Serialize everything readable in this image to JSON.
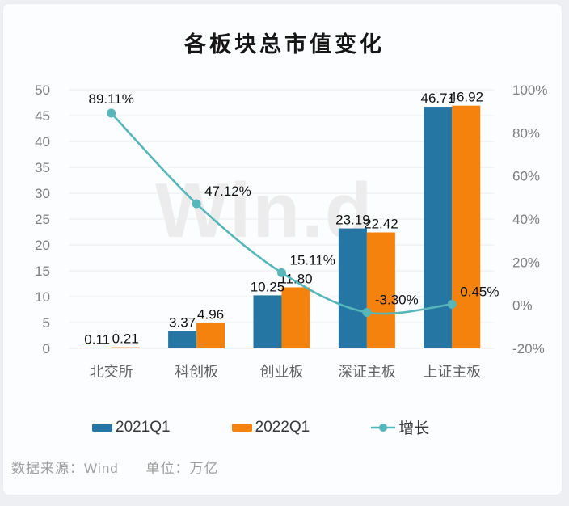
{
  "title": "各板块总市值变化",
  "watermark": "Win.d",
  "footer": {
    "source_label": "数据来源：Wind",
    "unit_label": "单位：万亿"
  },
  "colors": {
    "bar_2021": "#2576a3",
    "bar_2022": "#f5820c",
    "growth_line": "#57b6b9",
    "gridline": "#ececec",
    "axis_text": "#7e7e7e",
    "category_text": "#616161",
    "data_label": "#111111"
  },
  "chart_data": {
    "type": "bar",
    "combo": "bar+line",
    "title": "各板块总市值变化",
    "categories": [
      "北交所",
      "科创板",
      "创业板",
      "深证主板",
      "上证主板"
    ],
    "series": [
      {
        "name": "2021Q1",
        "type": "bar",
        "axis": "left",
        "color": "#2576a3",
        "values": [
          0.11,
          3.37,
          10.25,
          23.19,
          46.71
        ]
      },
      {
        "name": "2022Q1",
        "type": "bar",
        "axis": "left",
        "color": "#f5820c",
        "values": [
          0.21,
          4.96,
          11.8,
          22.42,
          46.92
        ]
      },
      {
        "name": "增长",
        "type": "line",
        "axis": "right",
        "color": "#57b6b9",
        "unit": "%",
        "values": [
          89.11,
          47.12,
          15.11,
          -3.3,
          0.45
        ]
      }
    ],
    "left_axis": {
      "min": 0,
      "max": 50,
      "step": 5
    },
    "right_axis": {
      "min": -20,
      "max": 100,
      "step": 20,
      "suffix": "%"
    },
    "grid": true,
    "legend_position": "bottom",
    "value_unit": "万亿"
  }
}
